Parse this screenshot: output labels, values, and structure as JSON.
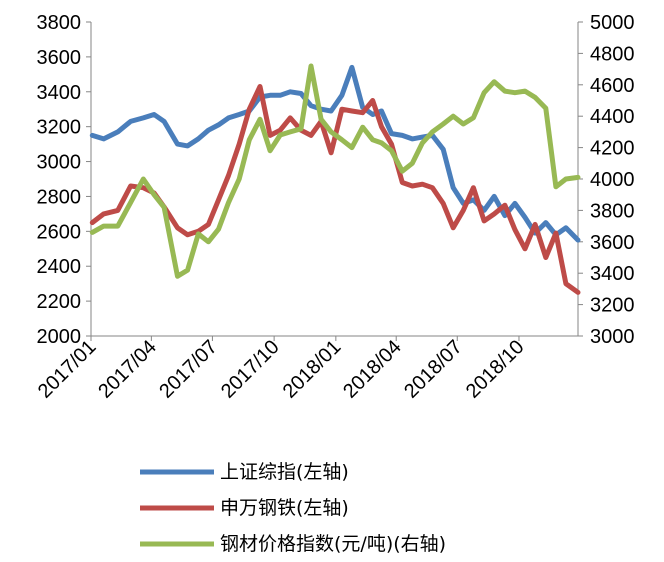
{
  "chart_data": {
    "type": "line",
    "title": "",
    "xlabel": "",
    "ylabel": "",
    "y2label": "",
    "grid": false,
    "legend_position": "bottom",
    "x_ticks": [
      "2017/01",
      "2017/04",
      "2017/07",
      "2017/10",
      "2018/01",
      "2018/04",
      "2018/07",
      "2018/10"
    ],
    "ylim_left": [
      2000,
      3800
    ],
    "yticks_left": [
      2000,
      2200,
      2400,
      2600,
      2800,
      3000,
      3200,
      3400,
      3600,
      3800
    ],
    "ylim_right": [
      3000,
      5000
    ],
    "yticks_right": [
      3000,
      3200,
      3400,
      3600,
      3800,
      4000,
      4200,
      4400,
      4600,
      4800,
      5000
    ],
    "x": [
      "2017-01-03",
      "2017-01-20",
      "2017-02-10",
      "2017-03-01",
      "2017-03-20",
      "2017-04-05",
      "2017-04-20",
      "2017-05-10",
      "2017-05-25",
      "2017-06-10",
      "2017-06-25",
      "2017-07-10",
      "2017-07-25",
      "2017-08-10",
      "2017-08-25",
      "2017-09-10",
      "2017-09-25",
      "2017-10-10",
      "2017-10-25",
      "2017-11-10",
      "2017-11-25",
      "2017-12-10",
      "2017-12-25",
      "2018-01-10",
      "2018-01-25",
      "2018-02-10",
      "2018-02-25",
      "2018-03-10",
      "2018-03-25",
      "2018-04-10",
      "2018-04-25",
      "2018-05-10",
      "2018-05-25",
      "2018-06-10",
      "2018-06-25",
      "2018-07-10",
      "2018-07-25",
      "2018-08-10",
      "2018-08-25",
      "2018-09-10",
      "2018-09-25",
      "2018-10-10",
      "2018-10-25",
      "2018-11-10",
      "2018-11-25",
      "2018-12-10",
      "2018-12-28"
    ],
    "series": [
      {
        "name": "上证综指(左轴)",
        "axis": "left",
        "color": "#4a7ebb",
        "values": [
          3150,
          3130,
          3170,
          3230,
          3250,
          3270,
          3230,
          3100,
          3090,
          3130,
          3180,
          3210,
          3250,
          3270,
          3290,
          3370,
          3380,
          3380,
          3400,
          3390,
          3320,
          3300,
          3290,
          3380,
          3540,
          3310,
          3270,
          3290,
          3160,
          3150,
          3130,
          3140,
          3150,
          3070,
          2850,
          2760,
          2780,
          2720,
          2800,
          2690,
          2760,
          2680,
          2590,
          2650,
          2580,
          2620,
          2550
        ]
      },
      {
        "name": "申万钢铁(左轴)",
        "axis": "left",
        "color": "#be4b48",
        "values": [
          2650,
          2700,
          2720,
          2860,
          2850,
          2820,
          2740,
          2620,
          2580,
          2600,
          2640,
          2780,
          2920,
          3100,
          3300,
          3430,
          3150,
          3180,
          3250,
          3180,
          3150,
          3230,
          3050,
          3300,
          3290,
          3280,
          3350,
          3200,
          3100,
          2880,
          2860,
          2870,
          2850,
          2760,
          2620,
          2720,
          2850,
          2660,
          2700,
          2750,
          2610,
          2500,
          2640,
          2450,
          2590,
          2300,
          2250
        ]
      },
      {
        "name": "钢材价格指数(元/吨)(右轴)",
        "axis": "right",
        "color": "#98b954",
        "values": [
          3660,
          3700,
          3700,
          3850,
          4000,
          3900,
          3820,
          3380,
          3420,
          3650,
          3600,
          3680,
          3850,
          4000,
          4250,
          4380,
          4180,
          4280,
          4300,
          4320,
          4720,
          4380,
          4300,
          4250,
          4200,
          4330,
          4250,
          4230,
          4180,
          4050,
          4100,
          4230,
          4300,
          4350,
          4400,
          4350,
          4390,
          4550,
          4620,
          4560,
          4550,
          4560,
          4520,
          4450,
          3950,
          4000,
          4010
        ]
      }
    ]
  }
}
